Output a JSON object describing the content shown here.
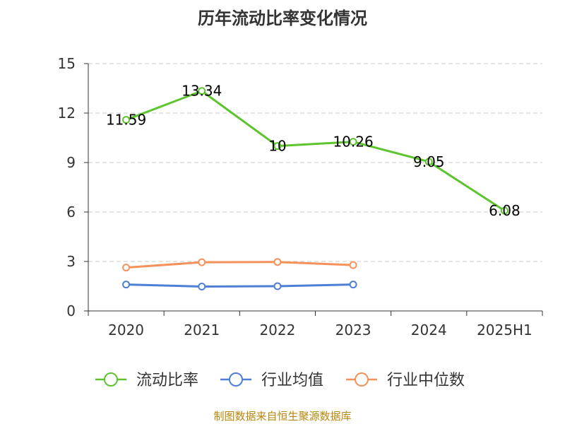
{
  "chart_data": {
    "type": "line",
    "title": "历年流动比率变化情况",
    "categories": [
      "2020",
      "2021",
      "2022",
      "2023",
      "2024",
      "2025H1"
    ],
    "ylim": [
      0,
      15
    ],
    "yticks": [
      0,
      3,
      6,
      9,
      12,
      15
    ],
    "grid": true,
    "legend_position": "bottom",
    "series": [
      {
        "name": "流动比率",
        "color": "#5ec42e",
        "values": [
          11.59,
          13.34,
          10,
          10.26,
          9.05,
          6.08
        ],
        "labels": [
          "11.59",
          "13.34",
          "10",
          "10.26",
          "9.05",
          "6.08"
        ]
      },
      {
        "name": "行业均值",
        "color": "#4e7fd6",
        "values": [
          1.6,
          1.48,
          1.5,
          1.6,
          null,
          null
        ]
      },
      {
        "name": "行业中位数",
        "color": "#f6915a",
        "values": [
          2.63,
          2.95,
          2.97,
          2.78,
          null,
          null
        ]
      }
    ]
  },
  "source": "制图数据来自恒生聚源数据库"
}
